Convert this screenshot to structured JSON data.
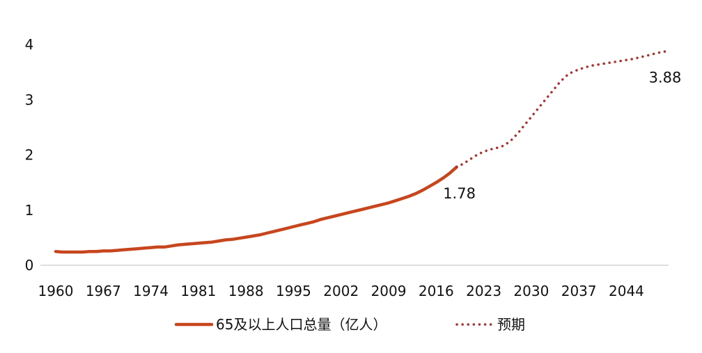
{
  "chart_data": {
    "type": "line",
    "x_tick_labels": [
      "1960",
      "1967",
      "1974",
      "1981",
      "1988",
      "1995",
      "2002",
      "2009",
      "2016",
      "2023",
      "2030",
      "2037",
      "2044"
    ],
    "y_tick_labels": [
      "0",
      "1",
      "2",
      "3",
      "4"
    ],
    "xlim": [
      1960,
      2050
    ],
    "ylim": [
      0,
      4
    ],
    "grid": false,
    "legend_position": "bottom",
    "series": [
      {
        "name": "65及以上人口总量（亿人）",
        "style": "solid",
        "color": "#C8461E",
        "x": [
          1960,
          1961,
          1962,
          1963,
          1964,
          1965,
          1966,
          1967,
          1968,
          1969,
          1970,
          1971,
          1972,
          1973,
          1974,
          1975,
          1976,
          1977,
          1978,
          1979,
          1980,
          1981,
          1982,
          1983,
          1984,
          1985,
          1986,
          1987,
          1988,
          1989,
          1990,
          1991,
          1992,
          1993,
          1994,
          1995,
          1996,
          1997,
          1998,
          1999,
          2000,
          2001,
          2002,
          2003,
          2004,
          2005,
          2006,
          2007,
          2008,
          2009,
          2010,
          2011,
          2012,
          2013,
          2014,
          2015,
          2016,
          2017,
          2018,
          2019
        ],
        "values": [
          0.25,
          0.24,
          0.24,
          0.24,
          0.24,
          0.25,
          0.25,
          0.26,
          0.26,
          0.27,
          0.28,
          0.29,
          0.3,
          0.31,
          0.32,
          0.33,
          0.33,
          0.35,
          0.37,
          0.38,
          0.39,
          0.4,
          0.41,
          0.42,
          0.44,
          0.46,
          0.47,
          0.49,
          0.51,
          0.53,
          0.55,
          0.58,
          0.61,
          0.64,
          0.67,
          0.7,
          0.73,
          0.76,
          0.79,
          0.83,
          0.86,
          0.89,
          0.92,
          0.95,
          0.98,
          1.01,
          1.04,
          1.07,
          1.1,
          1.13,
          1.17,
          1.21,
          1.25,
          1.3,
          1.36,
          1.43,
          1.5,
          1.58,
          1.67,
          1.78
        ]
      },
      {
        "name": "预期",
        "style": "dotted",
        "color": "#A8322D",
        "x": [
          2019,
          2020,
          2021,
          2022,
          2023,
          2024,
          2025,
          2026,
          2027,
          2028,
          2029,
          2030,
          2031,
          2032,
          2033,
          2034,
          2035,
          2036,
          2037,
          2038,
          2039,
          2040,
          2041,
          2042,
          2043,
          2044,
          2045,
          2046,
          2047,
          2048,
          2049,
          2050
        ],
        "values": [
          1.78,
          1.84,
          1.92,
          2.0,
          2.06,
          2.1,
          2.13,
          2.17,
          2.26,
          2.39,
          2.54,
          2.69,
          2.84,
          2.99,
          3.14,
          3.29,
          3.42,
          3.5,
          3.55,
          3.59,
          3.62,
          3.64,
          3.66,
          3.68,
          3.7,
          3.72,
          3.74,
          3.77,
          3.8,
          3.83,
          3.86,
          3.88
        ]
      }
    ],
    "annotations": [
      {
        "text": "1.78",
        "x": 2019,
        "y": 1.78
      },
      {
        "text": "3.88",
        "x": 2050,
        "y": 3.88
      }
    ]
  }
}
